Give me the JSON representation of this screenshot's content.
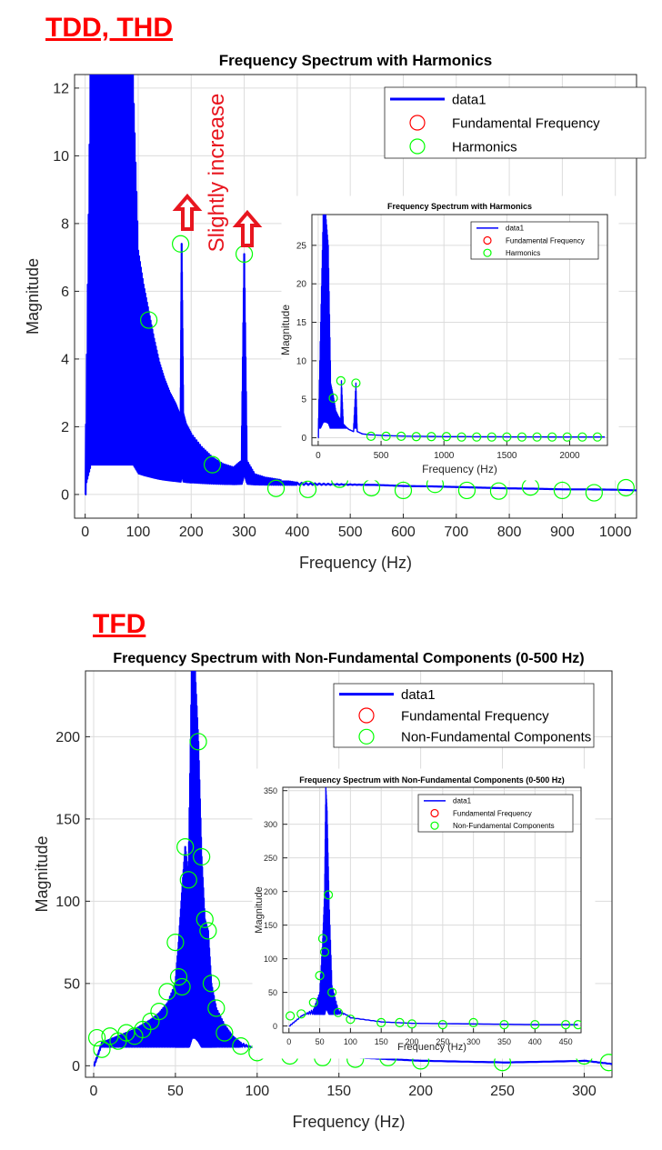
{
  "section_labels": {
    "top": "TDD, THD",
    "bottom": "TFD"
  },
  "annotation": {
    "text": "Slightly increase",
    "color": "#e8161f"
  },
  "colors": {
    "data_line": "#0000ff",
    "fundamental_marker": "#ff0000",
    "harmonic_marker": "#00ff00",
    "grid": "#dcdcdc",
    "axis": "#262626",
    "arrow_outline": "#e8161f"
  },
  "chart_data": [
    {
      "id": "top-main",
      "type": "line",
      "title": "Frequency Spectrum with Harmonics",
      "xlabel": "Frequency (Hz)",
      "ylabel": "Magnitude",
      "xlim": [
        -20,
        1040
      ],
      "ylim": [
        -0.7,
        12.4
      ],
      "xticks": [
        0,
        100,
        200,
        300,
        400,
        500,
        600,
        700,
        800,
        900,
        1000
      ],
      "yticks": [
        0,
        2,
        4,
        6,
        8,
        10,
        12
      ],
      "grid": true,
      "legend_position": "top-right",
      "legend": [
        "data1",
        "Fundamental Frequency",
        "Harmonics"
      ],
      "series": [
        {
          "name": "data1",
          "x": [
            0,
            10,
            20,
            30,
            40,
            50,
            60,
            70,
            80,
            90,
            100,
            110,
            120,
            130,
            140,
            150,
            160,
            170,
            175,
            180,
            182,
            185,
            190,
            200,
            220,
            240,
            260,
            280,
            295,
            300,
            305,
            320,
            340,
            360,
            380,
            400,
            450,
            500,
            550,
            600,
            650,
            700,
            750,
            800,
            850,
            900,
            950,
            1000,
            1040
          ],
          "y": [
            0,
            12.4,
            12.4,
            12.4,
            12.4,
            12.4,
            12.4,
            12.4,
            12.4,
            12.4,
            7.2,
            6.2,
            5.4,
            4.6,
            3.9,
            3.4,
            3.0,
            2.7,
            2.5,
            2.3,
            7.4,
            2.4,
            2.1,
            1.8,
            1.4,
            1.1,
            0.9,
            0.8,
            1.0,
            7.1,
            1.0,
            0.6,
            0.5,
            0.45,
            0.4,
            0.35,
            0.32,
            0.3,
            0.28,
            0.25,
            0.24,
            0.22,
            0.2,
            0.18,
            0.17,
            0.15,
            0.15,
            0.14,
            0.12
          ]
        },
        {
          "name": "Harmonics",
          "x": [
            120,
            180,
            240,
            300,
            360,
            420,
            480,
            540,
            600,
            660,
            720,
            780,
            840,
            900,
            960,
            1020
          ],
          "y": [
            5.15,
            7.4,
            0.88,
            7.1,
            0.18,
            0.15,
            0.45,
            0.2,
            0.12,
            0.3,
            0.12,
            0.1,
            0.22,
            0.12,
            0.05,
            0.2
          ]
        }
      ]
    },
    {
      "id": "top-inset",
      "type": "line",
      "title": "Frequency Spectrum with Harmonics",
      "xlabel": "Frequency (Hz)",
      "ylabel": "Magnitude",
      "xlim": [
        -50,
        2300
      ],
      "ylim": [
        -1,
        29
      ],
      "xticks": [
        0,
        500,
        1000,
        1500,
        2000
      ],
      "yticks": [
        0,
        5,
        10,
        15,
        20,
        25
      ],
      "grid": true,
      "legend_position": "top-right",
      "legend": [
        "data1",
        "Fundamental Frequency",
        "Harmonics"
      ],
      "series": [
        {
          "name": "data1",
          "x": [
            0,
            20,
            40,
            60,
            80,
            100,
            120,
            140,
            160,
            180,
            185,
            200,
            240,
            280,
            300,
            310,
            350,
            400,
            500,
            700,
            1000,
            1500,
            2000,
            2280
          ],
          "y": [
            0,
            15,
            29,
            29,
            25,
            7,
            5.5,
            3.5,
            2.8,
            2.3,
            7.4,
            1.8,
            1.1,
            0.8,
            7.1,
            0.8,
            0.5,
            0.4,
            0.3,
            0.2,
            0.15,
            0.12,
            0.1,
            0.1
          ]
        },
        {
          "name": "Harmonics",
          "x": [
            120,
            180,
            300,
            420,
            540,
            660,
            780,
            900,
            1020,
            1140,
            1260,
            1380,
            1500,
            1620,
            1740,
            1860,
            1980,
            2100,
            2220
          ],
          "y": [
            5.15,
            7.4,
            7.1,
            0.2,
            0.2,
            0.2,
            0.15,
            0.15,
            0.15,
            0.1,
            0.1,
            0.1,
            0.1,
            0.1,
            0.1,
            0.1,
            0.1,
            0.1,
            0.1
          ]
        }
      ]
    },
    {
      "id": "bottom-main",
      "type": "line",
      "title": "Frequency Spectrum with Non-Fundamental Components (0-500 Hz)",
      "xlabel": "Frequency (Hz)",
      "ylabel": "Magnitude",
      "xlim": [
        -5,
        317
      ],
      "ylim": [
        -7,
        240
      ],
      "xticks": [
        0,
        50,
        100,
        150,
        200,
        250,
        300
      ],
      "yticks": [
        0,
        50,
        100,
        150,
        200
      ],
      "grid": true,
      "legend_position": "top-right",
      "legend": [
        "data1",
        "Fundamental Frequency",
        "Non-Fundamental Components"
      ],
      "series": [
        {
          "name": "data1",
          "x": [
            0,
            5,
            10,
            15,
            20,
            25,
            30,
            35,
            40,
            45,
            50,
            52,
            54,
            56,
            58,
            60,
            62,
            64,
            66,
            68,
            70,
            72,
            75,
            80,
            85,
            90,
            100,
            120,
            140,
            160,
            180,
            200,
            250,
            300,
            317
          ],
          "y": [
            0,
            14,
            16,
            18,
            20,
            22,
            25,
            28,
            32,
            38,
            50,
            75,
            105,
            133,
            115,
            240,
            240,
            197,
            127,
            89,
            82,
            50,
            35,
            25,
            18,
            14,
            10,
            8,
            6,
            5,
            4,
            3,
            2,
            3,
            1
          ]
        },
        {
          "name": "Non-Fundamental Components",
          "x": [
            2,
            5,
            10,
            15,
            20,
            25,
            30,
            35,
            40,
            45,
            50,
            52,
            54,
            56,
            58,
            64,
            66,
            68,
            70,
            72,
            75,
            80,
            90,
            100,
            120,
            140,
            160,
            180,
            200,
            250,
            300,
            315
          ],
          "y": [
            17,
            10,
            18,
            15,
            20,
            18,
            22,
            27,
            33,
            45,
            75,
            54,
            48,
            133,
            113,
            197,
            127,
            89,
            82,
            50,
            35,
            20,
            12,
            8,
            6,
            5,
            4,
            5,
            3,
            2,
            6,
            2
          ]
        }
      ]
    },
    {
      "id": "bottom-inset",
      "type": "line",
      "title": "Frequency Spectrum with Non-Fundamental Components (0-500 Hz)",
      "xlabel": "Frequency (Hz)",
      "ylabel": "Magnitude",
      "xlim": [
        -10,
        475
      ],
      "ylim": [
        -10,
        355
      ],
      "xticks": [
        0,
        50,
        100,
        150,
        200,
        250,
        300,
        350,
        400,
        450
      ],
      "yticks": [
        0,
        50,
        100,
        150,
        200,
        250,
        300,
        350
      ],
      "grid": true,
      "legend_position": "top-right",
      "legend": [
        "data1",
        "Fundamental Frequency",
        "Non-Fundamental Components"
      ],
      "series": [
        {
          "name": "data1",
          "x": [
            0,
            20,
            40,
            50,
            55,
            58,
            60,
            62,
            65,
            70,
            80,
            100,
            150,
            200,
            300,
            400,
            470
          ],
          "y": [
            0,
            15,
            25,
            50,
            130,
            200,
            355,
            320,
            195,
            60,
            25,
            12,
            6,
            4,
            3,
            2,
            2
          ]
        },
        {
          "name": "Non-Fundamental Components",
          "x": [
            2,
            20,
            40,
            50,
            55,
            58,
            64,
            70,
            80,
            100,
            150,
            180,
            200,
            250,
            300,
            350,
            400,
            450,
            470
          ],
          "y": [
            15,
            18,
            35,
            75,
            130,
            110,
            195,
            50,
            20,
            10,
            5,
            5,
            3,
            2,
            5,
            2,
            2,
            2,
            2
          ]
        }
      ]
    }
  ]
}
